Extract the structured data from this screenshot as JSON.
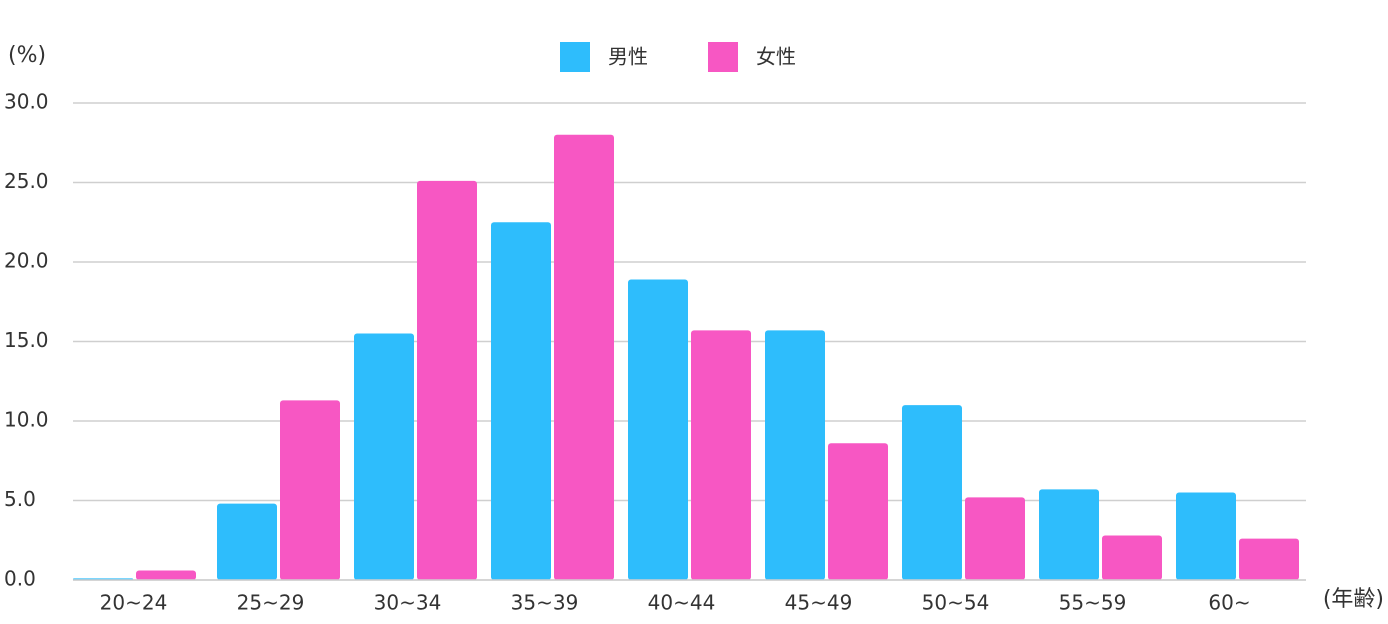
{
  "chart_data": {
    "type": "bar",
    "y_unit_label": "(%)",
    "x_unit_label": "(年齢)",
    "categories": [
      "20~24",
      "25~29",
      "30~34",
      "35~39",
      "40~44",
      "45~49",
      "50~54",
      "55~59",
      "60~"
    ],
    "series": [
      {
        "name": "男性",
        "color": "#2ebdfc",
        "values": [
          0.1,
          4.8,
          15.5,
          22.5,
          18.9,
          15.7,
          11.0,
          5.7,
          5.5
        ]
      },
      {
        "name": "女性",
        "color": "#f757c3",
        "values": [
          0.6,
          11.3,
          25.1,
          28.0,
          15.7,
          8.6,
          5.2,
          2.8,
          2.6
        ]
      }
    ],
    "ylim": [
      0,
      30
    ],
    "yticks": [
      {
        "value": 0,
        "label": "0.0"
      },
      {
        "value": 5,
        "label": "5.0"
      },
      {
        "value": 10,
        "label": "10.0"
      },
      {
        "value": 15,
        "label": "15.0"
      },
      {
        "value": 20,
        "label": "20.0"
      },
      {
        "value": 25,
        "label": "25.0"
      },
      {
        "value": 30,
        "label": "30.0"
      }
    ],
    "grid": true,
    "legend": "top"
  }
}
